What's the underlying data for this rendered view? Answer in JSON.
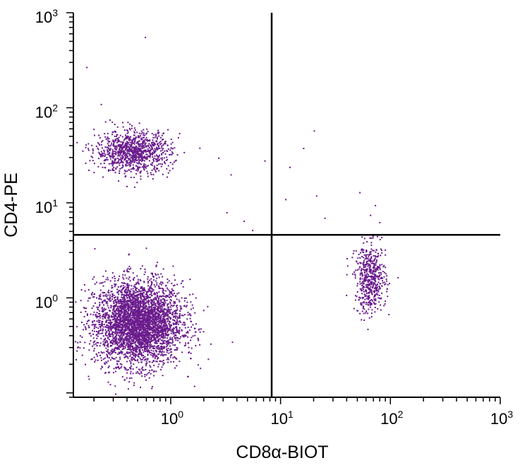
{
  "chart_data": {
    "type": "scatter",
    "xlabel": "CD8α-BIOT",
    "ylabel": "CD4-PE",
    "x_scale": "log",
    "y_scale": "log",
    "xlim": [
      0.13,
      1000
    ],
    "ylim": [
      0.09,
      1000
    ],
    "grid": false,
    "x_ticks": [
      {
        "base": "10",
        "exp": "0",
        "value": 1
      },
      {
        "base": "10",
        "exp": "1",
        "value": 10
      },
      {
        "base": "10",
        "exp": "2",
        "value": 100
      },
      {
        "base": "10",
        "exp": "3",
        "value": 1000
      }
    ],
    "y_ticks": [
      {
        "base": "10",
        "exp": "0",
        "value": 1
      },
      {
        "base": "10",
        "exp": "1",
        "value": 10
      },
      {
        "base": "10",
        "exp": "2",
        "value": 100
      },
      {
        "base": "10",
        "exp": "3",
        "value": 1000
      }
    ],
    "quadrant_gates": {
      "x": 8.3,
      "y": 4.6
    },
    "point_color": "#6a1b8c",
    "populations": [
      {
        "center_x": 0.5,
        "center_y": 0.55,
        "spread_x_decades": 0.2,
        "spread_y_decades": 0.22,
        "count": 3800
      },
      {
        "center_x": 0.45,
        "center_y": 35,
        "spread_x_decades": 0.17,
        "spread_y_decades": 0.11,
        "count": 1000
      },
      {
        "center_x": 65,
        "center_y": 1.6,
        "spread_x_decades": 0.07,
        "spread_y_decades": 0.18,
        "count": 550
      }
    ],
    "scattered_points": [
      {
        "x": 0.58,
        "y": 560
      },
      {
        "x": 0.17,
        "y": 270
      },
      {
        "x": 0.23,
        "y": 110
      },
      {
        "x": 20,
        "y": 58
      },
      {
        "x": 16,
        "y": 38
      },
      {
        "x": 12,
        "y": 24
      },
      {
        "x": 21,
        "y": 12
      },
      {
        "x": 11,
        "y": 11
      },
      {
        "x": 25,
        "y": 7
      },
      {
        "x": 52,
        "y": 13
      },
      {
        "x": 72,
        "y": 9.5
      },
      {
        "x": 65,
        "y": 7.5
      },
      {
        "x": 2.7,
        "y": 30
      },
      {
        "x": 3.5,
        "y": 20
      },
      {
        "x": 4.6,
        "y": 6.5
      },
      {
        "x": 5.5,
        "y": 5.2
      },
      {
        "x": 3.2,
        "y": 8
      },
      {
        "x": 7.1,
        "y": 28
      }
    ]
  }
}
